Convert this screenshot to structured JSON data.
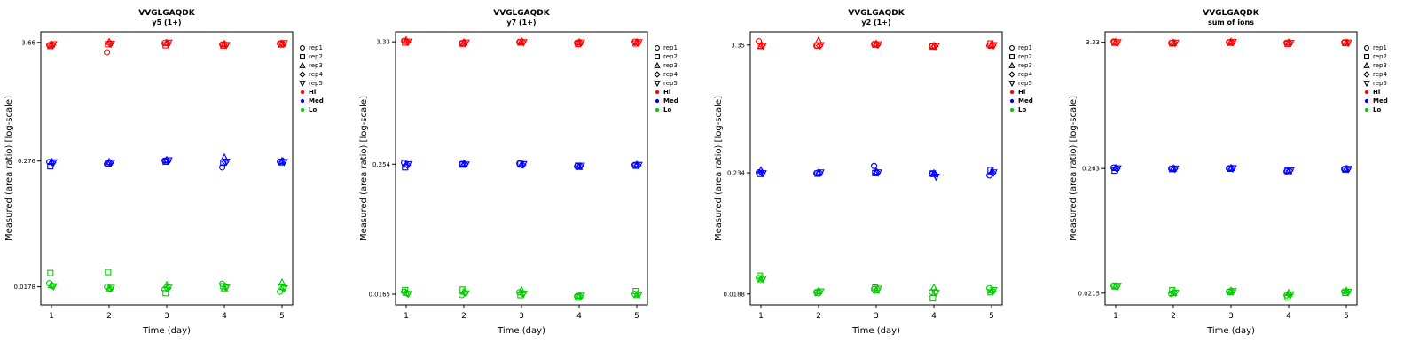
{
  "page": {
    "background": "#FFFFFF"
  },
  "legend": {
    "reps": [
      {
        "label": "rep1",
        "symbol": "circle"
      },
      {
        "label": "rep2",
        "symbol": "square"
      },
      {
        "label": "rep3",
        "symbol": "triangle-up"
      },
      {
        "label": "rep4",
        "symbol": "diamond"
      },
      {
        "label": "rep5",
        "symbol": "triangle-down"
      }
    ],
    "levels": [
      {
        "label": "Hi",
        "color": "#FF0000"
      },
      {
        "label": "Med",
        "color": "#0000FF"
      },
      {
        "label": "Lo",
        "color": "#00CC00"
      }
    ]
  },
  "chart_data": [
    {
      "type": "scatter",
      "title": "VVGLGAQDK",
      "subtitle": "y5 (1+)",
      "xlabel": "Time (day)",
      "ylabel": "Measured (area ratio) [log-scale]",
      "x_ticks": [
        "1",
        "2",
        "3",
        "4",
        "5"
      ],
      "y_scale": "log",
      "ylim": [
        0.012,
        4.6
      ],
      "y_ticks": [
        {
          "v": 3.66,
          "label": "3.66"
        },
        {
          "v": 0.276,
          "label": "0.276"
        },
        {
          "v": 0.0178,
          "label": "0.0178"
        }
      ],
      "series": [
        {
          "name": "Hi",
          "color": "#FF0000",
          "reps": [
            [
              3.45,
              2.95,
              3.6,
              3.5,
              3.58
            ],
            [
              3.38,
              3.52,
              3.44,
              3.42,
              3.5
            ],
            [
              3.5,
              3.7,
              3.62,
              3.55,
              3.56
            ],
            [
              3.46,
              3.58,
              3.58,
              3.48,
              3.54
            ],
            [
              3.52,
              3.56,
              3.64,
              3.46,
              3.6
            ]
          ]
        },
        {
          "name": "Med",
          "color": "#0000FF",
          "reps": [
            [
              0.27,
              0.258,
              0.278,
              0.24,
              0.272
            ],
            [
              0.246,
              0.262,
              0.272,
              0.266,
              0.268
            ],
            [
              0.272,
              0.27,
              0.282,
              0.298,
              0.276
            ],
            [
              0.266,
              0.264,
              0.276,
              0.27,
              0.274
            ],
            [
              0.268,
              0.266,
              0.28,
              0.272,
              0.27
            ]
          ]
        },
        {
          "name": "Lo",
          "color": "#00CC00",
          "reps": [
            [
              0.0192,
              0.0178,
              0.0168,
              0.019,
              0.016
            ],
            [
              0.024,
              0.0245,
              0.0155,
              0.018,
              0.0178
            ],
            [
              0.0185,
              0.0172,
              0.0185,
              0.0172,
              0.0195
            ],
            [
              0.0182,
              0.017,
              0.0172,
              0.0178,
              0.0175
            ],
            [
              0.018,
              0.0174,
              0.0176,
              0.0176,
              0.0172
            ]
          ]
        }
      ]
    },
    {
      "type": "scatter",
      "title": "VVGLGAQDK",
      "subtitle": "y7 (1+)",
      "xlabel": "Time (day)",
      "ylabel": "Measured (area ratio) [log-scale]",
      "x_ticks": [
        "1",
        "2",
        "3",
        "4",
        "5"
      ],
      "y_scale": "log",
      "ylim": [
        0.0132,
        4.1
      ],
      "y_ticks": [
        {
          "v": 3.33,
          "label": "3.33"
        },
        {
          "v": 0.254,
          "label": "0.254"
        },
        {
          "v": 0.0165,
          "label": "0.0165"
        }
      ],
      "series": [
        {
          "name": "Hi",
          "color": "#FF0000",
          "reps": [
            [
              3.4,
              3.24,
              3.32,
              3.26,
              3.34
            ],
            [
              3.28,
              3.2,
              3.28,
              3.18,
              3.22
            ],
            [
              3.44,
              3.28,
              3.36,
              3.3,
              3.3
            ],
            [
              3.32,
              3.26,
              3.32,
              3.26,
              3.28
            ],
            [
              3.34,
              3.28,
              3.3,
              3.28,
              3.3
            ]
          ]
        },
        {
          "name": "Med",
          "color": "#0000FF",
          "reps": [
            [
              0.262,
              0.255,
              0.258,
              0.242,
              0.25
            ],
            [
              0.238,
              0.252,
              0.256,
              0.246,
              0.246
            ],
            [
              0.252,
              0.257,
              0.252,
              0.24,
              0.252
            ],
            [
              0.25,
              0.254,
              0.25,
              0.244,
              0.248
            ],
            [
              0.254,
              0.252,
              0.254,
              0.246,
              0.25
            ]
          ]
        },
        {
          "name": "Lo",
          "color": "#00CC00",
          "reps": [
            [
              0.0174,
              0.0162,
              0.0172,
              0.0158,
              0.0166
            ],
            [
              0.018,
              0.0182,
              0.0162,
              0.0154,
              0.0176
            ],
            [
              0.017,
              0.0174,
              0.018,
              0.016,
              0.0162
            ],
            [
              0.0168,
              0.017,
              0.0168,
              0.0158,
              0.0166
            ],
            [
              0.0166,
              0.0168,
              0.0167,
              0.016,
              0.0164
            ]
          ]
        }
      ]
    },
    {
      "type": "scatter",
      "title": "VVGLGAQDK",
      "subtitle": "y2 (1+)",
      "xlabel": "Time (day)",
      "ylabel": "Measured (area ratio) [log-scale]",
      "x_ticks": [
        "1",
        "2",
        "3",
        "4",
        "5"
      ],
      "y_scale": "log",
      "ylim": [
        0.015,
        4.4
      ],
      "y_ticks": [
        {
          "v": 3.35,
          "label": "3.35"
        },
        {
          "v": 0.234,
          "label": "0.234"
        },
        {
          "v": 0.0188,
          "label": "0.0188"
        }
      ],
      "series": [
        {
          "name": "Hi",
          "color": "#FF0000",
          "reps": [
            [
              3.62,
              3.3,
              3.42,
              3.26,
              3.3
            ],
            [
              3.3,
              3.32,
              3.38,
              3.24,
              3.46
            ],
            [
              3.28,
              3.68,
              3.44,
              3.3,
              3.36
            ],
            [
              3.32,
              3.3,
              3.36,
              3.26,
              3.32
            ],
            [
              3.3,
              3.34,
              3.4,
              3.28,
              3.34
            ]
          ]
        },
        {
          "name": "Med",
          "color": "#0000FF",
          "reps": [
            [
              0.236,
              0.232,
              0.27,
              0.228,
              0.222
            ],
            [
              0.229,
              0.23,
              0.233,
              0.231,
              0.248
            ],
            [
              0.247,
              0.234,
              0.24,
              0.232,
              0.238
            ],
            [
              0.234,
              0.233,
              0.235,
              0.226,
              0.234
            ],
            [
              0.232,
              0.236,
              0.236,
              0.216,
              0.236
            ]
          ]
        },
        {
          "name": "Lo",
          "color": "#00CC00",
          "reps": [
            [
              0.0262,
              0.0196,
              0.0208,
              0.0196,
              0.0212
            ],
            [
              0.0275,
              0.0192,
              0.0215,
              0.0172,
              0.0195
            ],
            [
              0.0255,
              0.02,
              0.0202,
              0.0215,
              0.0202
            ],
            [
              0.026,
              0.0196,
              0.0207,
              0.0196,
              0.02
            ],
            [
              0.0258,
              0.0198,
              0.021,
              0.0193,
              0.0204
            ]
          ]
        }
      ]
    },
    {
      "type": "scatter",
      "title": "VVGLGAQDK",
      "subtitle": "sum of ions",
      "xlabel": "Time (day)",
      "ylabel": "Measured (area ratio) [log-scale]",
      "x_ticks": [
        "1",
        "2",
        "3",
        "4",
        "5"
      ],
      "y_scale": "log",
      "ylim": [
        0.017,
        4.1
      ],
      "y_ticks": [
        {
          "v": 3.33,
          "label": "3.33"
        },
        {
          "v": 0.263,
          "label": "0.263"
        },
        {
          "v": 0.0215,
          "label": "0.0215"
        }
      ],
      "series": [
        {
          "name": "Hi",
          "color": "#FF0000",
          "reps": [
            [
              3.38,
              3.28,
              3.33,
              3.3,
              3.32
            ],
            [
              3.3,
              3.26,
              3.3,
              3.23,
              3.28
            ],
            [
              3.35,
              3.3,
              3.37,
              3.32,
              3.3
            ],
            [
              3.32,
              3.28,
              3.32,
              3.28,
              3.3
            ],
            [
              3.33,
              3.3,
              3.34,
              3.29,
              3.31
            ]
          ]
        },
        {
          "name": "Med",
          "color": "#0000FF",
          "reps": [
            [
              0.268,
              0.262,
              0.264,
              0.248,
              0.26
            ],
            [
              0.252,
              0.26,
              0.262,
              0.254,
              0.258
            ],
            [
              0.266,
              0.264,
              0.266,
              0.25,
              0.262
            ],
            [
              0.262,
              0.261,
              0.263,
              0.252,
              0.26
            ],
            [
              0.264,
              0.263,
              0.265,
              0.253,
              0.261
            ]
          ]
        },
        {
          "name": "Lo",
          "color": "#00CC00",
          "reps": [
            [
              0.025,
              0.0212,
              0.0222,
              0.0206,
              0.0222
            ],
            [
              0.0246,
              0.0228,
              0.022,
              0.0198,
              0.0216
            ],
            [
              0.0248,
              0.0216,
              0.0226,
              0.0216,
              0.0226
            ],
            [
              0.0247,
              0.0218,
              0.0222,
              0.0208,
              0.0219
            ],
            [
              0.0249,
              0.0217,
              0.0224,
              0.021,
              0.0221
            ]
          ]
        }
      ]
    }
  ]
}
